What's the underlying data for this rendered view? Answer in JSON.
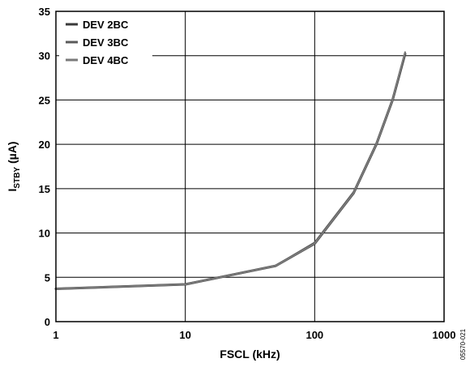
{
  "chart_data": {
    "type": "line",
    "x_scale": "log",
    "xlabel": "FSCL (kHz)",
    "ylabel_main": "I",
    "ylabel_sub": "STBY",
    "ylabel_rest": " (µA)",
    "xlim": [
      1,
      1000
    ],
    "ylim": [
      0,
      35
    ],
    "x_ticks": [
      1,
      10,
      100,
      1000
    ],
    "x_tick_labels": [
      "1",
      "10",
      "100",
      "1000"
    ],
    "y_ticks": [
      0,
      5,
      10,
      15,
      20,
      25,
      30,
      35
    ],
    "y_tick_labels": [
      "0",
      "5",
      "10",
      "15",
      "20",
      "25",
      "30",
      "35"
    ],
    "grid": true,
    "legend_position": "top-left",
    "figure_code": "05570-021",
    "series": [
      {
        "name": "DEV 2BC",
        "color": "#3a3a3a",
        "x": [
          1,
          10,
          20,
          50,
          100,
          200,
          300,
          400,
          500
        ],
        "y": [
          3.7,
          4.2,
          5.1,
          6.3,
          8.8,
          14.5,
          20.0,
          25.0,
          30.2
        ]
      },
      {
        "name": "DEV 3BC",
        "color": "#5a5a5a",
        "x": [
          1,
          10,
          20,
          50,
          100,
          200,
          300,
          400,
          500
        ],
        "y": [
          3.7,
          4.2,
          5.1,
          6.3,
          8.9,
          14.6,
          20.1,
          25.1,
          30.3
        ]
      },
      {
        "name": "DEV 4BC",
        "color": "#7a7a7a",
        "x": [
          1,
          10,
          20,
          50,
          100,
          200,
          300,
          400,
          500
        ],
        "y": [
          3.7,
          4.2,
          5.1,
          6.3,
          8.8,
          14.5,
          20.0,
          25.0,
          30.4
        ]
      }
    ]
  }
}
